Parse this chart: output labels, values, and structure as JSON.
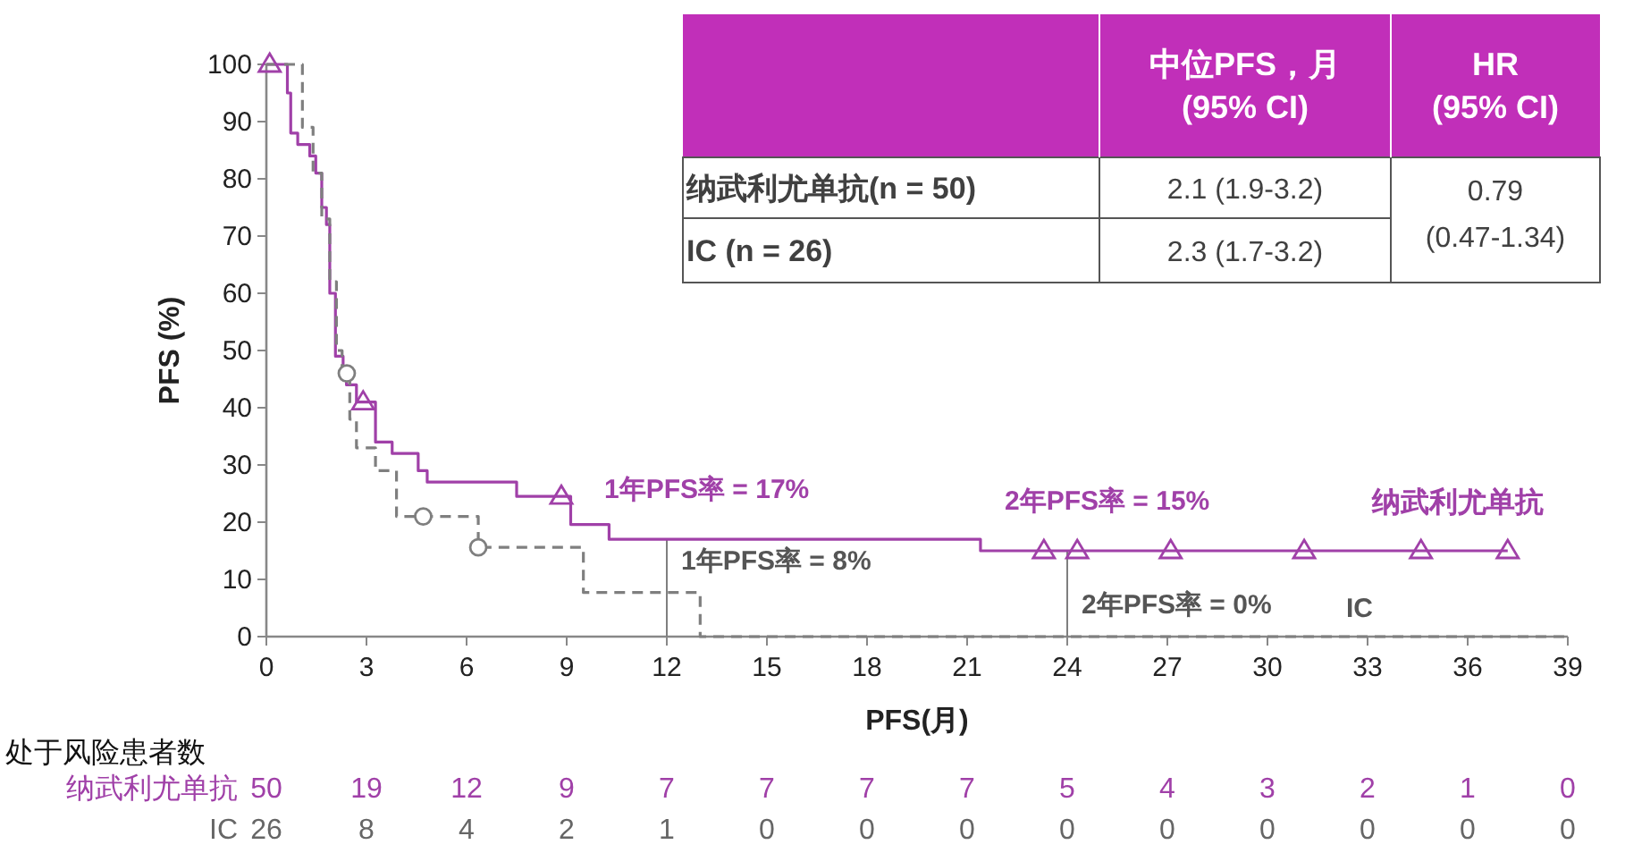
{
  "chart_data": {
    "type": "step",
    "xlabel": "PFS(月)",
    "ylabel": "PFS (%)",
    "xlim": [
      0,
      39
    ],
    "xticks": [
      0,
      3,
      6,
      9,
      12,
      15,
      18,
      21,
      24,
      27,
      30,
      33,
      36,
      39
    ],
    "ylim": [
      0,
      100
    ],
    "yticks": [
      0,
      10,
      20,
      30,
      40,
      50,
      60,
      70,
      80,
      90,
      100
    ],
    "grid": false,
    "series": [
      {
        "name": "纳武利尤单抗",
        "color": "#a040a8",
        "line_style": "solid",
        "x": [
          0,
          0.63,
          0.73,
          0.94,
          1.3,
          1.48,
          1.66,
          1.8,
          1.9,
          2.07,
          2.3,
          2.4,
          2.7,
          3.27,
          3.77,
          4.55,
          4.82,
          7.5,
          9.12,
          10.27,
          21.4,
          37.2
        ],
        "values": [
          100,
          95,
          88,
          86,
          84,
          81,
          75,
          72,
          60,
          49,
          47,
          44,
          41,
          34,
          32,
          29,
          27,
          24.5,
          19.6,
          17,
          15,
          15
        ]
      },
      {
        "name": "IC",
        "color": "#7f7f7f",
        "line_style": "dashed",
        "x": [
          0,
          1.08,
          1.4,
          1.66,
          1.9,
          2.1,
          2.27,
          2.5,
          2.7,
          3.27,
          3.9,
          6.35,
          9.5,
          13.0,
          39
        ],
        "values": [
          100,
          89,
          81,
          73,
          62,
          50,
          46,
          38,
          33,
          29,
          21,
          15.6,
          7.7,
          0,
          0
        ]
      },
      {
        "type": "scatter",
        "marker": "triangle",
        "color": "#a040a8",
        "x": [
          0.1,
          2.9,
          8.84,
          23.3,
          24.3,
          27.1,
          31.1,
          34.6,
          37.2
        ],
        "values": [
          100,
          41,
          24.5,
          15,
          15,
          15,
          15,
          15,
          15
        ]
      },
      {
        "type": "scatter",
        "marker": "circle",
        "color": "#7f7f7f",
        "x": [
          2.41,
          4.7,
          6.35
        ],
        "values": [
          46,
          21,
          15.6
        ]
      }
    ],
    "ref_lines": [
      {
        "axis": "x",
        "value": 12,
        "color": "#7f7f7f"
      },
      {
        "axis": "x",
        "value": 24,
        "color": "#7f7f7f"
      }
    ],
    "annotations": [
      "1年PFS率 = 17%",
      "1年PFS率 = 8%",
      "2年PFS率 = 15%",
      "2年PFS率 = 0%",
      "中位PFS，月",
      "(95% CI)",
      "HR",
      "(95% CI)",
      "纳武利尤单抗(n = 50)",
      "2.1 (1.9-3.2)",
      "0.79",
      "(0.47-1.34)",
      "IC (n = 26)",
      "2.3 (1.7-3.2)",
      "处于风险患者数",
      "50",
      "19",
      "12",
      "9",
      "7",
      "7",
      "7",
      "7",
      "5",
      "4",
      "3",
      "2",
      "1",
      "0",
      "26",
      "8",
      "4",
      "2",
      "1",
      "0",
      "0",
      "0",
      "0",
      "0",
      "0",
      "0",
      "0",
      "0"
    ]
  }
}
